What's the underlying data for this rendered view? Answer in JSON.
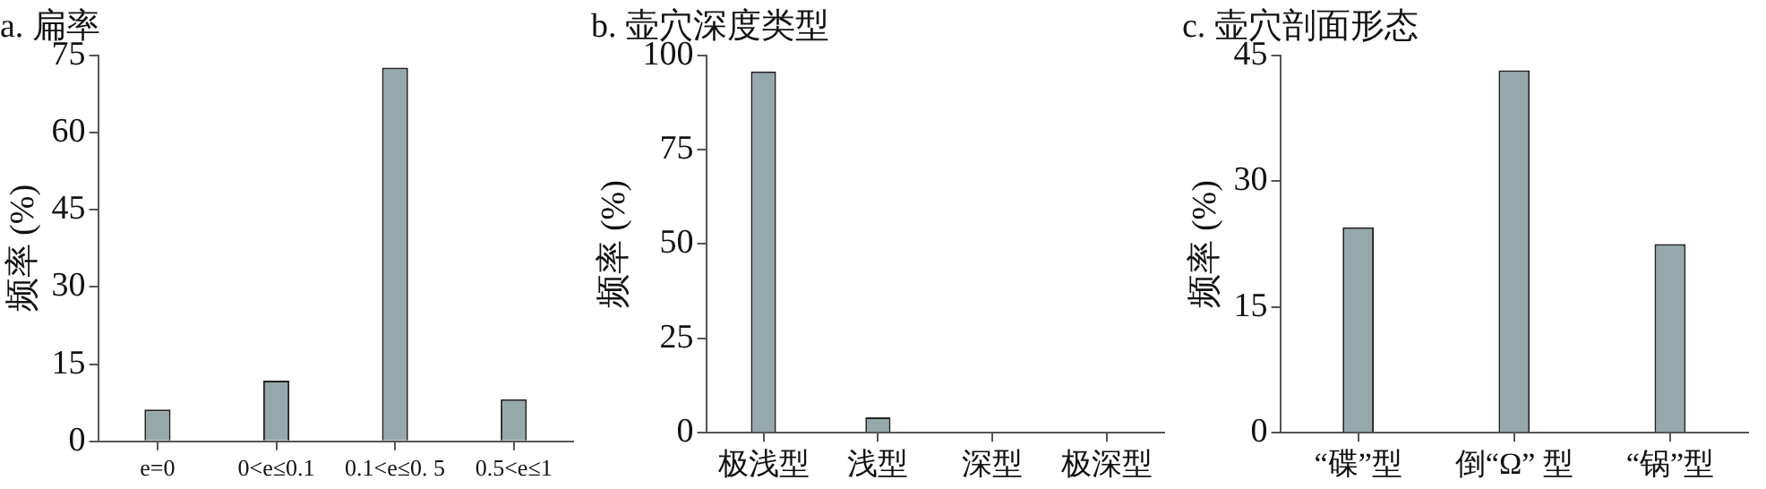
{
  "chart_data": [
    {
      "type": "bar",
      "title": "a. 扁率",
      "ylabel": "频率 (%)",
      "categories": [
        "e=0",
        "0<e≤0.1",
        "0.1<e≤0. 5",
        "0.5<e≤1"
      ],
      "values": [
        6.2,
        11.8,
        72.6,
        8.2
      ],
      "color": "#95a8aa",
      "ylim": [
        0,
        75
      ],
      "yticks": [
        0,
        15,
        30,
        45,
        60,
        75
      ],
      "grid": false,
      "legend": false
    },
    {
      "type": "bar",
      "title": "b. 壶穴深度类型",
      "ylabel": "频率 (%)",
      "categories": [
        "极浅型",
        "浅型",
        "深型",
        "极深型"
      ],
      "values": [
        95.7,
        4.1,
        0,
        0
      ],
      "color": "#95a8aa",
      "ylim": [
        0,
        100
      ],
      "yticks": [
        0,
        25,
        50,
        75,
        100
      ],
      "grid": false,
      "legend": false
    },
    {
      "type": "bar",
      "title": "c. 壶穴剖面形态",
      "ylabel": "频率 (%)",
      "categories": [
        "“碟”型",
        "倒“Ω” 型",
        "“锅”型"
      ],
      "values": [
        24.5,
        43.2,
        22.5
      ],
      "color": "#95a8aa",
      "ylim": [
        0,
        45
      ],
      "yticks": [
        0,
        15,
        30,
        45
      ],
      "grid": false,
      "legend": false
    }
  ]
}
